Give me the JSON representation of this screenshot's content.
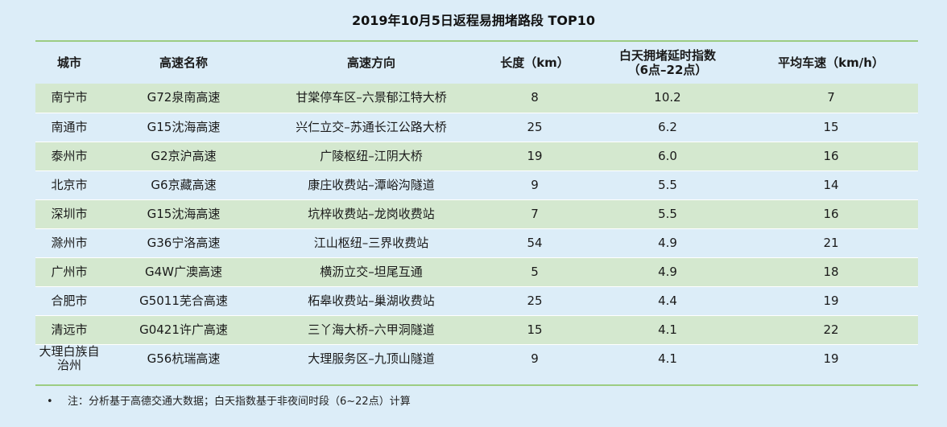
{
  "title": "2019年10月5日返程易拥堵路段 TOP10",
  "headers": {
    "city": "城市",
    "name": "高速名称",
    "direction": "高速方向",
    "length": "长度（km）",
    "index_line1": "白天拥堵延时指数",
    "index_line2": "（6点–22点）",
    "speed": "平均车速（km/h）"
  },
  "rows": [
    {
      "city": "南宁市",
      "name": "G72泉南高速",
      "direction": "甘棠停车区–六景郁江特大桥",
      "length": "8",
      "index": "10.2",
      "speed": "7"
    },
    {
      "city": "南通市",
      "name": "G15沈海高速",
      "direction": "兴仁立交–苏通长江公路大桥",
      "length": "25",
      "index": "6.2",
      "speed": "15"
    },
    {
      "city": "泰州市",
      "name": "G2京沪高速",
      "direction": "广陵枢纽–江阴大桥",
      "length": "19",
      "index": "6.0",
      "speed": "16"
    },
    {
      "city": "北京市",
      "name": "G6京藏高速",
      "direction": "康庄收费站–潭峪沟隧道",
      "length": "9",
      "index": "5.5",
      "speed": "14"
    },
    {
      "city": "深圳市",
      "name": "G15沈海高速",
      "direction": "坑梓收费站–龙岗收费站",
      "length": "7",
      "index": "5.5",
      "speed": "16"
    },
    {
      "city": "滁州市",
      "name": "G36宁洛高速",
      "direction": "江山枢纽–三界收费站",
      "length": "54",
      "index": "4.9",
      "speed": "21"
    },
    {
      "city": "广州市",
      "name": "G4W广澳高速",
      "direction": "横沥立交–坦尾互通",
      "length": "5",
      "index": "4.9",
      "speed": "18"
    },
    {
      "city": "合肥市",
      "name": "G5011芜合高速",
      "direction": "柘皋收费站–巢湖收费站",
      "length": "25",
      "index": "4.4",
      "speed": "19"
    },
    {
      "city": "清远市",
      "name": "G0421许广高速",
      "direction": "三丫海大桥–六甲洞隧道",
      "length": "15",
      "index": "4.1",
      "speed": "22"
    },
    {
      "city": "大理白族自治州",
      "name": "G56杭瑞高速",
      "direction": "大理服务区–九顶山隧道",
      "length": "9",
      "index": "4.1",
      "speed": "19"
    }
  ],
  "note": {
    "bullet": "•",
    "text": "注：分析基于高德交通大数据；白天指数基于非夜间时段（6~22点）计算"
  }
}
